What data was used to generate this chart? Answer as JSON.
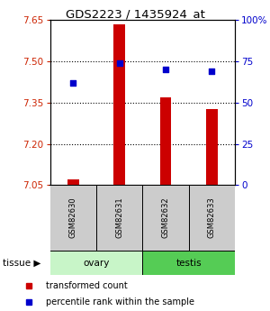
{
  "title": "GDS2223 / 1435924_at",
  "samples": [
    "GSM82630",
    "GSM82631",
    "GSM82632",
    "GSM82633"
  ],
  "bar_values": [
    7.07,
    7.635,
    7.37,
    7.325
  ],
  "bar_base": 7.05,
  "percentile_values": [
    62,
    74,
    70,
    69
  ],
  "left_ylim": [
    7.05,
    7.65
  ],
  "right_ylim": [
    0,
    100
  ],
  "left_yticks": [
    7.05,
    7.2,
    7.35,
    7.5,
    7.65
  ],
  "right_yticks": [
    0,
    25,
    50,
    75,
    100
  ],
  "right_yticklabels": [
    "0",
    "25",
    "50",
    "75",
    "100%"
  ],
  "bar_color": "#cc0000",
  "dot_color": "#0000cc",
  "left_tick_color": "#cc2200",
  "right_tick_color": "#0000cc",
  "legend_items": [
    "transformed count",
    "percentile rank within the sample"
  ],
  "ovary_color": "#c8f5c8",
  "testis_color": "#55cc55",
  "sample_box_color": "#cccccc",
  "figsize": [
    3.0,
    3.45
  ],
  "dpi": 100
}
